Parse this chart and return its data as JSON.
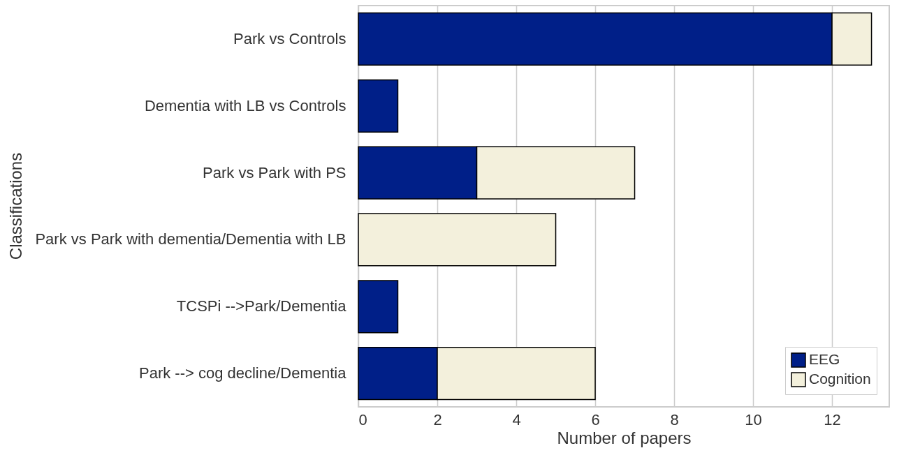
{
  "chart_data": {
    "type": "bar",
    "orientation": "horizontal",
    "stacked": true,
    "xlabel": "Number of papers",
    "ylabel": "Classifications",
    "categories": [
      "Park vs Controls",
      "Dementia with LB vs Controls",
      "Park vs Park with PS",
      "Park vs Park with dementia/Dementia with LB",
      "TCSPi -->Park/Dementia",
      "Park --> cog decline/Dementia"
    ],
    "series": [
      {
        "name": "EEG",
        "color": "#001f88",
        "values": [
          12,
          1,
          3,
          0,
          1,
          2
        ]
      },
      {
        "name": "Cognition",
        "color": "#f3f0dc",
        "values": [
          1,
          0,
          4,
          5,
          0,
          4
        ]
      }
    ],
    "xlim": [
      0,
      13.45
    ],
    "xticks": [
      0,
      2,
      4,
      6,
      8,
      10,
      12
    ],
    "grid": "x",
    "legend": "bottom right"
  }
}
